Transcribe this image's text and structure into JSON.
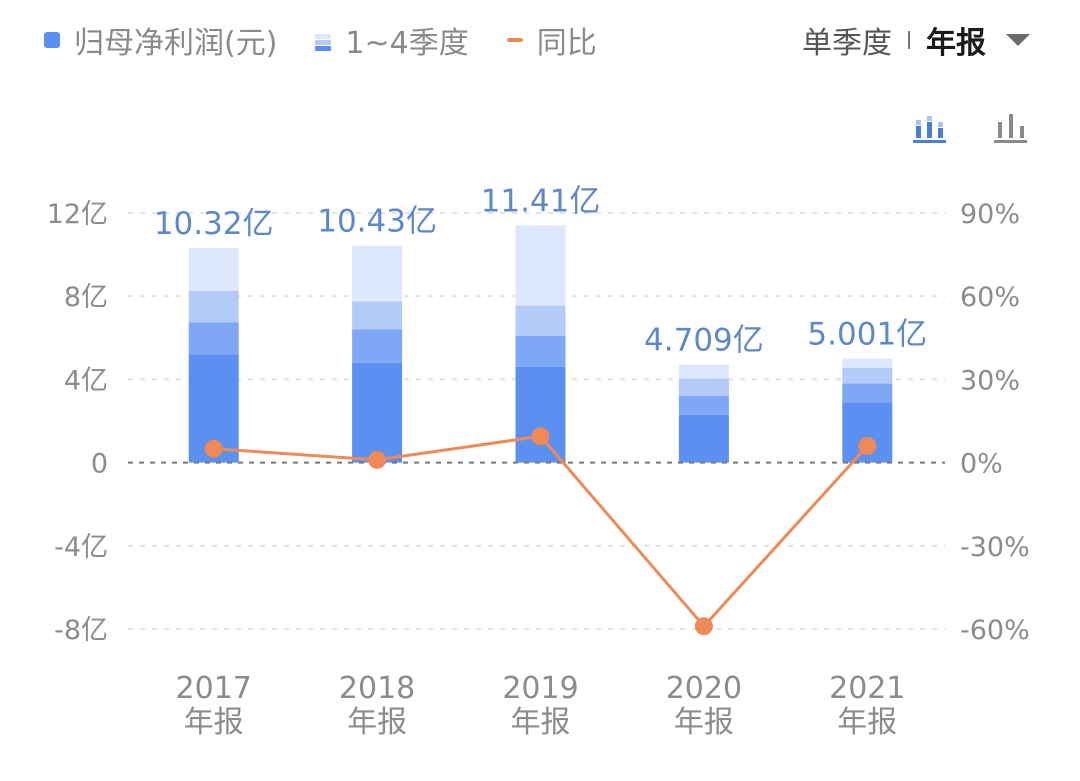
{
  "legend": {
    "profit": "归母净利润(元)",
    "quarters": "1~4季度",
    "yoy": "同比"
  },
  "toggle": {
    "quarterly": "单季度",
    "annual": "年报"
  },
  "colors": {
    "q1": "#5b8ff0",
    "q2": "#7ea7f5",
    "q3": "#b3cbf8",
    "q4": "#dde8fc",
    "line": "#ee8a57",
    "label": "#5e88c7",
    "icon_active": "#4a7fd8",
    "icon_inactive": "#8a8a8a"
  },
  "chart_data": {
    "type": "bar",
    "categories": [
      "2017",
      "2018",
      "2019",
      "2020",
      "2021"
    ],
    "category_suffix": "年报",
    "series": [
      {
        "name": "1~4季度",
        "stacked": true,
        "values": [
          [
            5.2,
            1.55,
            1.5,
            2.07
          ],
          [
            4.8,
            1.6,
            1.35,
            2.68
          ],
          [
            4.6,
            1.5,
            1.45,
            3.86
          ],
          [
            2.3,
            0.9,
            0.85,
            0.659
          ],
          [
            2.9,
            0.9,
            0.75,
            0.451
          ]
        ]
      },
      {
        "name": "归母净利润(元)",
        "values": [
          10.32,
          10.43,
          11.41,
          4.709,
          5.001
        ],
        "labels": [
          "10.32亿",
          "10.43亿",
          "11.41亿",
          "4.709亿",
          "5.001亿"
        ]
      },
      {
        "name": "同比",
        "axis": "right",
        "values": [
          5,
          1,
          9.5,
          -59,
          6
        ]
      }
    ],
    "left_axis": {
      "ticks": [
        12,
        8,
        4,
        0,
        -4,
        -8
      ],
      "labels": [
        "12亿",
        "8亿",
        "4亿",
        "0",
        "-4亿",
        "-8亿"
      ],
      "ylim": [
        -8,
        12
      ]
    },
    "right_axis": {
      "ticks": [
        90,
        60,
        30,
        0,
        -30,
        -60
      ],
      "labels": [
        "90%",
        "60%",
        "30%",
        "0%",
        "-30%",
        "-60%"
      ],
      "ylim": [
        -60,
        90
      ]
    },
    "grid": true
  }
}
